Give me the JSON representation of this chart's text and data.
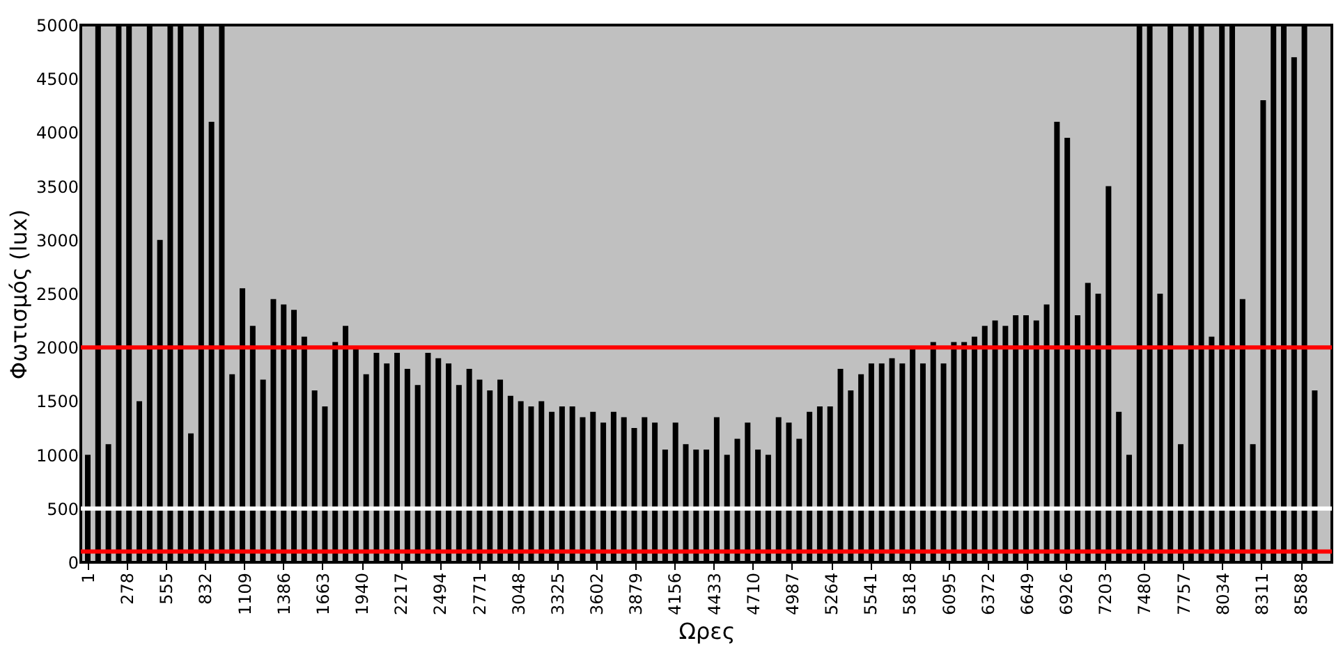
{
  "chart_data": {
    "type": "bar",
    "xlabel": "Ωρες",
    "ylabel": "Φωτισμός (lux)",
    "color": "#000000",
    "x": [
      1,
      74,
      147,
      220,
      293,
      366,
      439,
      512,
      585,
      658,
      731,
      804,
      877,
      950,
      1023,
      1096,
      1169,
      1242,
      1315,
      1388,
      1461,
      1534,
      1607,
      1680,
      1753,
      1826,
      1899,
      1972,
      2045,
      2118,
      2191,
      2264,
      2337,
      2410,
      2483,
      2556,
      2629,
      2702,
      2775,
      2848,
      2921,
      2994,
      3067,
      3140,
      3213,
      3286,
      3359,
      3432,
      3505,
      3578,
      3651,
      3724,
      3797,
      3870,
      3943,
      4016,
      4089,
      4162,
      4235,
      4308,
      4381,
      4454,
      4527,
      4600,
      4673,
      4746,
      4819,
      4892,
      4965,
      5038,
      5111,
      5184,
      5257,
      5330,
      5403,
      5476,
      5549,
      5622,
      5695,
      5768,
      5841,
      5914,
      5987,
      6060,
      6133,
      6206,
      6279,
      6352,
      6425,
      6498,
      6571,
      6644,
      6717,
      6790,
      6863,
      6936,
      7009,
      7082,
      7155,
      7228,
      7301,
      7374,
      7447,
      7520,
      7593,
      7666,
      7739,
      7812,
      7885,
      7958,
      8031,
      8104,
      8177,
      8250,
      8323,
      8396,
      8469,
      8542,
      8615,
      8688
    ],
    "values": [
      1000,
      5000,
      1100,
      5000,
      5000,
      1500,
      5000,
      3000,
      5000,
      5000,
      1200,
      5000,
      4100,
      5000,
      1750,
      2550,
      2200,
      1700,
      2450,
      2400,
      2350,
      2100,
      1600,
      1450,
      2050,
      2200,
      2000,
      1750,
      1950,
      1850,
      1950,
      1800,
      1650,
      1950,
      1900,
      1850,
      1650,
      1800,
      1700,
      1600,
      1700,
      1550,
      1500,
      1450,
      1500,
      1400,
      1450,
      1450,
      1350,
      1400,
      1300,
      1400,
      1350,
      1250,
      1350,
      1300,
      1050,
      1300,
      1100,
      1050,
      1050,
      1350,
      1000,
      1150,
      1300,
      1050,
      1000,
      1350,
      1300,
      1150,
      1400,
      1450,
      1450,
      1800,
      1600,
      1750,
      1850,
      1850,
      1900,
      1850,
      2000,
      1850,
      2050,
      1850,
      2050,
      2050,
      2100,
      2200,
      2250,
      2200,
      2300,
      2300,
      2250,
      2400,
      4100,
      3950,
      2300,
      2600,
      2500,
      3500,
      1400,
      1000,
      5000,
      5000,
      2500,
      5000,
      1100,
      5000,
      5000,
      2100,
      5000,
      5000,
      2450,
      1100,
      4300,
      5000,
      5000,
      4700,
      5000,
      1600
    ],
    "xlim": [
      1,
      8760
    ],
    "xticks": [
      1,
      278,
      555,
      832,
      1109,
      1386,
      1663,
      1940,
      2217,
      2494,
      2771,
      3048,
      3325,
      3602,
      3879,
      4156,
      4433,
      4710,
      4987,
      5264,
      5541,
      5818,
      6095,
      6372,
      6649,
      6926,
      7203,
      7480,
      7757,
      8034,
      8311,
      8588
    ],
    "ylim": [
      0,
      5000
    ],
    "yticks": [
      0,
      500,
      1000,
      1500,
      2000,
      2500,
      3000,
      3500,
      4000,
      4500,
      5000
    ],
    "ref_lines": [
      {
        "axis": "y",
        "value": 2000,
        "color": "#ff0000"
      },
      {
        "axis": "y",
        "value": 500,
        "color": "#ffffff"
      },
      {
        "axis": "y",
        "value": 100,
        "color": "#ff0000"
      }
    ]
  }
}
